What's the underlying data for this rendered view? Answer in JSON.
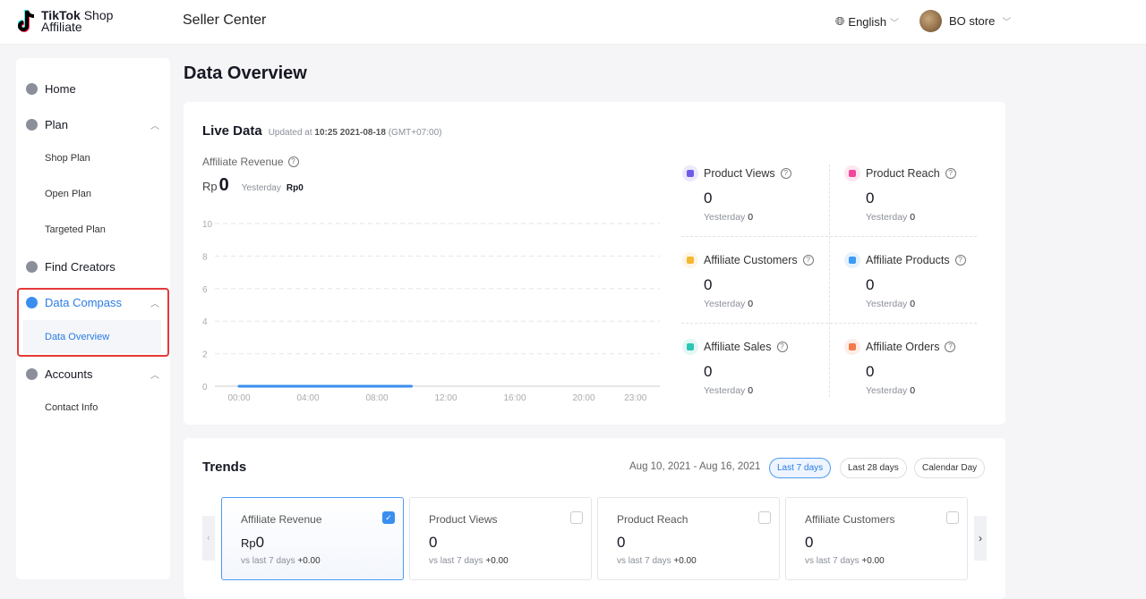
{
  "header": {
    "logo_line1": "TikTok",
    "logo_line1b": " Shop",
    "logo_line2": "Affiliate",
    "title": "Seller Center",
    "language": "English",
    "user": "BO store"
  },
  "sidebar": {
    "items": [
      {
        "label": "Home"
      },
      {
        "label": "Plan"
      },
      {
        "label": "Shop Plan"
      },
      {
        "label": "Open Plan"
      },
      {
        "label": "Targeted Plan"
      },
      {
        "label": "Find Creators"
      },
      {
        "label": "Data Compass"
      },
      {
        "label": "Data Overview"
      },
      {
        "label": "Accounts"
      },
      {
        "label": "Contact Info"
      }
    ]
  },
  "page_title": "Data Overview",
  "live": {
    "title": "Live Data",
    "updated_prefix": "Updated at",
    "updated_time": "10:25 2021-08-18",
    "timezone": "(GMT+07:00)",
    "revenue_label": "Affiliate Revenue",
    "currency": "Rp",
    "revenue_value": "0",
    "yesterday_label": "Yesterday",
    "yesterday_value": "Rp0",
    "metrics": [
      {
        "label": "Product Views",
        "value": "0",
        "yesterday": "0",
        "color": "#6c5ce7"
      },
      {
        "label": "Product Reach",
        "value": "0",
        "yesterday": "0",
        "color": "#f0479b"
      },
      {
        "label": "Affiliate Customers",
        "value": "0",
        "yesterday": "0",
        "color": "#f5b731"
      },
      {
        "label": "Affiliate Products",
        "value": "0",
        "yesterday": "0",
        "color": "#3d9bf5"
      },
      {
        "label": "Affiliate Sales",
        "value": "0",
        "yesterday": "0",
        "color": "#2bc5b5"
      },
      {
        "label": "Affiliate Orders",
        "value": "0",
        "yesterday": "0",
        "color": "#f27a4a"
      }
    ]
  },
  "chart_data": {
    "type": "line",
    "x_ticks": [
      "00:00",
      "04:00",
      "08:00",
      "12:00",
      "16:00",
      "20:00",
      "23:00"
    ],
    "y_ticks": [
      "0",
      "2",
      "4",
      "6",
      "8",
      "10"
    ],
    "ylim": [
      0,
      10
    ],
    "grid": true,
    "series": [
      {
        "color": "#3a8ef0",
        "x": [
          0,
          1,
          2,
          3,
          4,
          5,
          6,
          7,
          8,
          9,
          10
        ],
        "y": [
          0,
          0,
          0,
          0,
          0,
          0,
          0,
          0,
          0,
          0,
          0
        ]
      }
    ]
  },
  "trends": {
    "title": "Trends",
    "date_range": "Aug 10, 2021 - Aug 16, 2021",
    "filters": [
      "Last 7 days",
      "Last 28 days",
      "Calendar Day"
    ],
    "active_filter": "Last 7 days",
    "cards": [
      {
        "label": "Affiliate Revenue",
        "currency": "Rp",
        "value": "0",
        "compare": "vs last 7 days",
        "delta": "+0.00",
        "checked": true
      },
      {
        "label": "Product Views",
        "currency": "",
        "value": "0",
        "compare": "vs last 7 days",
        "delta": "+0.00",
        "checked": false
      },
      {
        "label": "Product Reach",
        "currency": "",
        "value": "0",
        "compare": "vs last 7 days",
        "delta": "+0.00",
        "checked": false
      },
      {
        "label": "Affiliate Customers",
        "currency": "",
        "value": "0",
        "compare": "vs last 7 days",
        "delta": "+0.00",
        "checked": false
      }
    ]
  }
}
